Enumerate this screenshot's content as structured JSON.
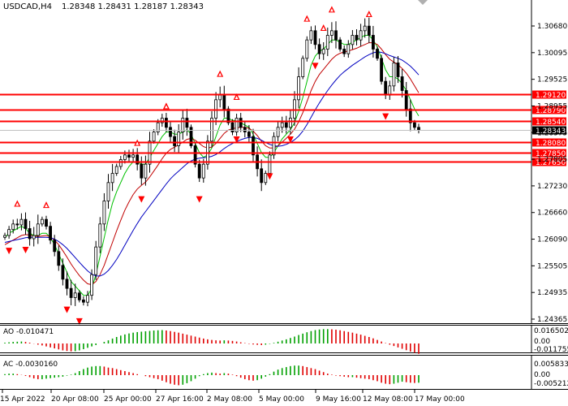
{
  "header": {
    "symbol_timeframe": "USDCAD,H4",
    "ohlc": "1.28348 1.28431 1.28187 1.28343"
  },
  "price_axis": {
    "ticks": [
      "1.30680",
      "1.30095",
      "1.29525",
      "1.28955",
      "1.28375",
      "1.27805",
      "1.27230",
      "1.26660",
      "1.26090",
      "1.25505",
      "1.24935",
      "1.24365"
    ],
    "current_price": "1.28343"
  },
  "levels": [
    {
      "label": "1.29120",
      "value": 1.2912
    },
    {
      "label": "1.28790",
      "value": 1.2879
    },
    {
      "label": "1.28540",
      "value": 1.2854
    },
    {
      "label": "1.28080",
      "value": 1.2808
    },
    {
      "label": "1.27850",
      "value": 1.2785
    },
    {
      "label": "1.27650",
      "value": 1.2765
    }
  ],
  "ao_panel": {
    "label": "AO -0.010471",
    "ticks": [
      "0.016502",
      "0.00",
      "-0.011755"
    ]
  },
  "ac_panel": {
    "label": "AC -0.0030160",
    "ticks": [
      "0.0058333",
      "0.00",
      "-0.005212"
    ]
  },
  "time_axis": {
    "labels": [
      "15 Apr 2022",
      "20 Apr 08:00",
      "25 Apr 00:00",
      "27 Apr 16:00",
      "2 May 08:00",
      "5 May 00:00",
      "9 May 16:00",
      "12 May 08:00",
      "17 May 00:00"
    ]
  },
  "colors": {
    "level_line": "#ff0000",
    "ma_fast": "#00c000",
    "ma_mid": "#c00000",
    "ma_slow": "#0000c0",
    "fractal": "#ff0000",
    "histogram_up": "#00a000",
    "histogram_down": "#e00000",
    "candle": "#000000"
  },
  "chart_data": [
    {
      "type": "candlestick",
      "title": "USDCAD,H4",
      "ylim": [
        1.2425,
        1.3085
      ],
      "x_labels": [
        "15 Apr 2022",
        "20 Apr 08:00",
        "25 Apr 00:00",
        "27 Apr 16:00",
        "2 May 08:00",
        "5 May 00:00",
        "9 May 16:00",
        "12 May 08:00",
        "17 May 00:00"
      ],
      "close_series": [
        1.2605,
        1.2618,
        1.263,
        1.2628,
        1.264,
        1.262,
        1.2598,
        1.2605,
        1.263,
        1.264,
        1.2625,
        1.2595,
        1.257,
        1.254,
        1.251,
        1.249,
        1.247,
        1.248,
        1.2465,
        1.246,
        1.2475,
        1.252,
        1.258,
        1.263,
        1.268,
        1.272,
        1.274,
        1.2755,
        1.277,
        1.278,
        1.2775,
        1.278,
        1.276,
        1.273,
        1.276,
        1.281,
        1.283,
        1.285,
        1.286,
        1.284,
        1.282,
        1.28,
        1.283,
        1.286,
        1.284,
        1.28,
        1.276,
        1.273,
        1.276,
        1.281,
        1.286,
        1.29,
        1.291,
        1.288,
        1.285,
        1.283,
        1.286,
        1.284,
        1.283,
        1.282,
        1.278,
        1.275,
        1.272,
        1.274,
        1.278,
        1.282,
        1.284,
        1.285,
        1.284,
        1.286,
        1.29,
        1.295,
        1.299,
        1.303,
        1.305,
        1.302,
        1.3,
        1.301,
        1.304,
        1.305,
        1.303,
        1.301,
        1.3,
        1.302,
        1.304,
        1.303,
        1.305,
        1.306,
        1.304,
        1.301,
        1.299,
        1.294,
        1.291,
        1.293,
        1.298,
        1.295,
        1.292,
        1.288,
        1.285,
        1.284,
        1.2834
      ],
      "fractals_up_x": [
        3,
        10,
        32,
        39,
        52,
        56,
        73,
        77,
        79,
        88
      ],
      "fractals_down_x": [
        1,
        5,
        15,
        18,
        33,
        47,
        56,
        64,
        69,
        75,
        92
      ],
      "series": [
        {
          "name": "",
          "values": [
            1.26,
            1.261,
            1.2615,
            1.262,
            1.2625,
            1.262,
            1.261,
            1.2605,
            1.2605,
            1.261,
            1.261,
            1.26,
            1.2585,
            1.2565,
            1.2545,
            1.2525,
            1.2505,
            1.2495,
            1.2485,
            1.2475,
            1.2475,
            1.249,
            1.252,
            1.256,
            1.26,
            1.264,
            1.2675,
            1.27,
            1.272,
            1.274,
            1.2755,
            1.2765,
            1.2765,
            1.276,
            1.276,
            1.2775,
            1.279,
            1.2805,
            1.282,
            1.283,
            1.283,
            1.2825,
            1.2825,
            1.283,
            1.2835,
            1.2825,
            1.2805,
            1.2785,
            1.2775,
            1.278,
            1.2795,
            1.282,
            1.2845,
            1.286,
            1.286,
            1.2855,
            1.2855,
            1.285,
            1.2845,
            1.284,
            1.2825,
            1.2805,
            1.2785,
            1.2775,
            1.2775,
            1.2785,
            1.28,
            1.2815,
            1.2825,
            1.2835,
            1.285,
            1.2875,
            1.2905,
            1.294,
            1.2975,
            1.2995,
            1.3005,
            1.301,
            1.302,
            1.303,
            1.303,
            1.3025,
            1.302,
            1.302,
            1.3025,
            1.303,
            1.3035,
            1.304,
            1.304,
            1.303,
            1.3015,
            1.299,
            1.2965,
            1.295,
            1.295,
            1.2945,
            1.2935,
            1.292,
            1.29,
            1.288,
            1.2865
          ]
        },
        {
          "name": "",
          "values": [
            1.2585,
            1.259,
            1.2595,
            1.26,
            1.2605,
            1.2607,
            1.2606,
            1.2604,
            1.2603,
            1.2604,
            1.2605,
            1.2602,
            1.2595,
            1.2585,
            1.2572,
            1.2558,
            1.2543,
            1.253,
            1.2518,
            1.2508,
            1.25,
            1.2498,
            1.2505,
            1.252,
            1.254,
            1.2565,
            1.259,
            1.2615,
            1.2638,
            1.266,
            1.2678,
            1.2694,
            1.2706,
            1.2714,
            1.2721,
            1.2732,
            1.2745,
            1.2758,
            1.2772,
            1.2784,
            1.2792,
            1.2797,
            1.2802,
            1.2808,
            1.2814,
            1.2816,
            1.2812,
            1.2805,
            1.2798,
            1.2795,
            1.2797,
            1.2805,
            1.2816,
            1.2827,
            1.2834,
            1.2837,
            1.2839,
            1.284,
            1.284,
            1.2838,
            1.2832,
            1.2822,
            1.281,
            1.28,
            1.2795,
            1.2795,
            1.28,
            1.2808,
            1.2816,
            1.2825,
            1.2836,
            1.2852,
            1.2872,
            1.2896,
            1.292,
            1.294,
            1.2955,
            1.2966,
            1.2977,
            1.2988,
            1.2996,
            1.3001,
            1.3004,
            1.3006,
            1.3009,
            1.3012,
            1.3016,
            1.302,
            1.3024,
            1.3024,
            1.302,
            1.301,
            1.2998,
            1.2988,
            1.2982,
            1.2976,
            1.2968,
            1.2958,
            1.2945,
            1.293,
            1.2915
          ]
        },
        {
          "name": "",
          "values": [
            1.259,
            1.2592,
            1.2594,
            1.2596,
            1.2598,
            1.26,
            1.2601,
            1.2601,
            1.2601,
            1.2601,
            1.2601,
            1.26,
            1.2597,
            1.2592,
            1.2585,
            1.2577,
            1.2567,
            1.2557,
            1.2547,
            1.2537,
            1.2528,
            1.2521,
            1.2517,
            1.2517,
            1.2521,
            1.2529,
            1.254,
            1.2553,
            1.2568,
            1.2584,
            1.26,
            1.2616,
            1.2631,
            1.2645,
            1.2657,
            1.2669,
            1.2681,
            1.2693,
            1.2705,
            1.2717,
            1.2728,
            1.2737,
            1.2745,
            1.2753,
            1.2761,
            1.2767,
            1.2771,
            1.2773,
            1.2774,
            1.2775,
            1.2777,
            1.2781,
            1.2787,
            1.2794,
            1.28,
            1.2805,
            1.2809,
            1.2813,
            1.2816,
            1.2818,
            1.2818,
            1.2816,
            1.2812,
            1.2807,
            1.2803,
            1.28,
            1.2799,
            1.28,
            1.2803,
            1.2807,
            1.2813,
            1.2821,
            1.2832,
            1.2846,
            1.2862,
            1.2878,
            1.2893,
            1.2907,
            1.292,
            1.2932,
            1.2943,
            1.2953,
            1.2961,
            1.2968,
            1.2975,
            1.2981,
            1.2987,
            1.2993,
            1.2998,
            1.3002,
            1.3004,
            1.3003,
            1.3,
            1.2996,
            1.2993,
            1.299,
            1.2986,
            1.298,
            1.2973,
            1.2964,
            1.2954
          ]
        }
      ]
    },
    {
      "type": "bar",
      "title": "AO -0.010471",
      "ylim": [
        -0.011755,
        0.016502
      ],
      "values": [
        0.0008,
        0.0012,
        0.0016,
        0.0018,
        0.002,
        0.0016,
        0.0008,
        -0.0002,
        -0.0012,
        -0.002,
        -0.003,
        -0.004,
        -0.005,
        -0.006,
        -0.007,
        -0.0076,
        -0.008,
        -0.0078,
        -0.007,
        -0.0058,
        -0.0044,
        -0.003,
        -0.0016,
        0.0,
        0.0016,
        0.0032,
        0.005,
        0.0066,
        0.008,
        0.0092,
        0.0102,
        0.011,
        0.0116,
        0.012,
        0.0124,
        0.0128,
        0.0132,
        0.0134,
        0.0136,
        0.0132,
        0.0126,
        0.0118,
        0.011,
        0.01,
        0.009,
        0.008,
        0.007,
        0.006,
        0.005,
        0.0042,
        0.0036,
        0.0032,
        0.003,
        0.0032,
        0.003,
        0.0026,
        0.002,
        0.0012,
        0.0004,
        -0.0004,
        -0.001,
        -0.0014,
        -0.0016,
        -0.0012,
        -0.0004,
        0.0006,
        0.0018,
        0.003,
        0.0042,
        0.0056,
        0.007,
        0.0086,
        0.01,
        0.0114,
        0.0126,
        0.0136,
        0.0142,
        0.0146,
        0.0146,
        0.0144,
        0.014,
        0.0134,
        0.0126,
        0.0118,
        0.011,
        0.01,
        0.009,
        0.0078,
        0.0066,
        0.0052,
        0.0036,
        0.002,
        0.0004,
        -0.0012,
        -0.0026,
        -0.004,
        -0.0054,
        -0.0068,
        -0.0082,
        -0.0094,
        -0.0105
      ]
    },
    {
      "type": "bar",
      "title": "AC -0.0030160",
      "ylim": [
        -0.005212,
        0.0058333
      ],
      "values": [
        0.0004,
        0.0006,
        0.0006,
        0.0004,
        0.0001,
        -0.0003,
        -0.0008,
        -0.0013,
        -0.0016,
        -0.0016,
        -0.0014,
        -0.0012,
        -0.001,
        -0.0008,
        -0.0006,
        -0.0002,
        0.0002,
        0.0008,
        0.0016,
        0.0024,
        0.003,
        0.0034,
        0.0036,
        0.0036,
        0.0034,
        0.003,
        0.0028,
        0.0024,
        0.002,
        0.0016,
        0.0012,
        0.0008,
        0.0004,
        0.0,
        -0.0004,
        -0.0008,
        -0.0012,
        -0.0016,
        -0.0022,
        -0.0028,
        -0.0034,
        -0.0038,
        -0.004,
        -0.0038,
        -0.0032,
        -0.0024,
        -0.0014,
        -0.0004,
        0.0004,
        0.0008,
        0.001,
        0.0008,
        0.0006,
        0.0008,
        0.0006,
        0.0002,
        -0.0004,
        -0.001,
        -0.0016,
        -0.002,
        -0.0022,
        -0.002,
        -0.0014,
        -0.0006,
        0.0004,
        0.0014,
        0.0022,
        0.0028,
        0.0032,
        0.0036,
        0.0038,
        0.0038,
        0.0036,
        0.0032,
        0.0028,
        0.0024,
        0.0018,
        0.0012,
        0.0006,
        0.0002,
        -0.0002,
        -0.0004,
        -0.0006,
        -0.0008,
        -0.0008,
        -0.001,
        -0.0012,
        -0.0014,
        -0.0016,
        -0.002,
        -0.0024,
        -0.003,
        -0.0034,
        -0.0036,
        -0.0034,
        -0.003,
        -0.0026,
        -0.0028,
        -0.003,
        -0.0031,
        -0.003
      ]
    }
  ]
}
